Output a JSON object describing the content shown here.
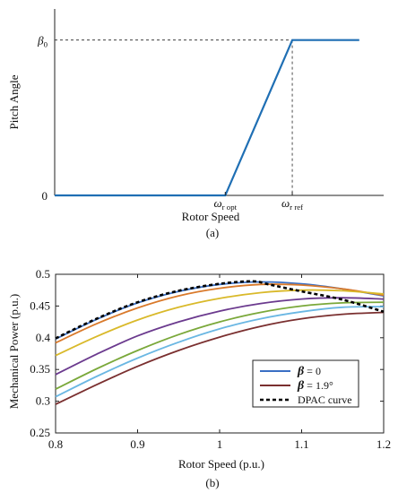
{
  "colors": {
    "pitch_line": "#1f6fb4",
    "axis": "#222222",
    "beta0_curve": "#3a6fc4",
    "beta19_curve": "#7a2f2f",
    "dpac": "#000000",
    "palette": [
      "#3a6fc4",
      "#d9792a",
      "#d9b92a",
      "#6b3a8e",
      "#7aa83a",
      "#6ab7e3",
      "#7a2f2f"
    ]
  },
  "chart_data": [
    {
      "type": "line",
      "caption": "(a)",
      "xlabel": "Rotor Speed",
      "ylabel": "Pitch  Angle",
      "ytick_labels": [
        "0",
        "β₀"
      ],
      "xtick_labels": [
        "ω_r opt",
        "ω_r ref"
      ],
      "xtick_display": [
        {
          "main": "ω",
          "sub": "r opt"
        },
        {
          "main": "ω",
          "sub": "r ref"
        }
      ],
      "ytick_display": [
        {
          "main": "0",
          "sub": ""
        },
        {
          "main": "β",
          "sub": "0"
        }
      ],
      "series": [
        {
          "points": [
            [
              0,
              0
            ],
            [
              0.56,
              0
            ],
            [
              0.78,
              1
            ],
            [
              1.0,
              1
            ]
          ]
        }
      ],
      "reference_lines": {
        "x": 0.78,
        "y": 1
      },
      "xlim": [
        0,
        1.08
      ],
      "ylim": [
        0,
        1.2
      ]
    },
    {
      "type": "line",
      "caption": "(b)",
      "xlabel": "Rotor Speed  (p.u.)",
      "ylabel": "Mechanical Power  (p.u.)",
      "xlim": [
        0.8,
        1.2
      ],
      "ylim": [
        0.25,
        0.5
      ],
      "xticks": [
        0.8,
        0.9,
        1.0,
        1.1,
        1.2
      ],
      "xtick_labels": [
        "0.8",
        "0.9",
        "1",
        "1.1",
        "1.2"
      ],
      "yticks": [
        0.25,
        0.3,
        0.35,
        0.4,
        0.45,
        0.5
      ],
      "ytick_labels": [
        "0.25",
        "0.3",
        "0.35",
        "0.4",
        "0.45",
        "0.5"
      ],
      "series": [
        {
          "x": [
            0.8,
            0.85,
            0.9,
            0.95,
            1.0,
            1.05,
            1.1,
            1.15,
            1.2
          ],
          "y": [
            0.398,
            0.429,
            0.455,
            0.473,
            0.484,
            0.488,
            0.485,
            0.477,
            0.466
          ]
        },
        {
          "x": [
            0.8,
            0.85,
            0.9,
            0.95,
            1.0,
            1.05,
            1.1,
            1.15,
            1.2
          ],
          "y": [
            0.392,
            0.422,
            0.447,
            0.466,
            0.478,
            0.484,
            0.483,
            0.477,
            0.467
          ]
        },
        {
          "x": [
            0.8,
            0.85,
            0.9,
            0.95,
            1.0,
            1.05,
            1.1,
            1.15,
            1.2
          ],
          "y": [
            0.372,
            0.402,
            0.428,
            0.448,
            0.462,
            0.471,
            0.475,
            0.474,
            0.469
          ]
        },
        {
          "x": [
            0.8,
            0.85,
            0.9,
            0.95,
            1.0,
            1.05,
            1.1,
            1.15,
            1.2
          ],
          "y": [
            0.342,
            0.374,
            0.403,
            0.425,
            0.442,
            0.454,
            0.461,
            0.463,
            0.461
          ]
        },
        {
          "x": [
            0.8,
            0.85,
            0.9,
            0.95,
            1.0,
            1.05,
            1.1,
            1.15,
            1.2
          ],
          "y": [
            0.319,
            0.351,
            0.38,
            0.405,
            0.425,
            0.44,
            0.45,
            0.455,
            0.456
          ]
        },
        {
          "x": [
            0.8,
            0.85,
            0.9,
            0.95,
            1.0,
            1.05,
            1.1,
            1.15,
            1.2
          ],
          "y": [
            0.307,
            0.339,
            0.368,
            0.393,
            0.414,
            0.43,
            0.441,
            0.448,
            0.449
          ]
        },
        {
          "x": [
            0.8,
            0.85,
            0.9,
            0.95,
            1.0,
            1.05,
            1.1,
            1.15,
            1.2
          ],
          "y": [
            0.295,
            0.326,
            0.355,
            0.38,
            0.401,
            0.418,
            0.43,
            0.437,
            0.44
          ]
        },
        {
          "name": "DPAC curve",
          "dashed": true,
          "x": [
            0.8,
            0.85,
            0.9,
            0.95,
            1.0,
            1.04,
            1.06,
            1.1,
            1.15,
            1.2
          ],
          "y": [
            0.399,
            0.43,
            0.456,
            0.474,
            0.485,
            0.489,
            0.484,
            0.473,
            0.46,
            0.441
          ]
        }
      ],
      "legend": {
        "placement": "lower-right",
        "entries": [
          {
            "label": "β = 0",
            "symbol": "β",
            "text": " = 0",
            "series_index": 0
          },
          {
            "label": "β = 1.9°",
            "symbol": "β",
            "text": " = 1.9°",
            "series_index": 6
          },
          {
            "label": "DPAC curve",
            "symbol": "",
            "text": "DPAC curve",
            "series_index": 7
          }
        ]
      }
    }
  ]
}
